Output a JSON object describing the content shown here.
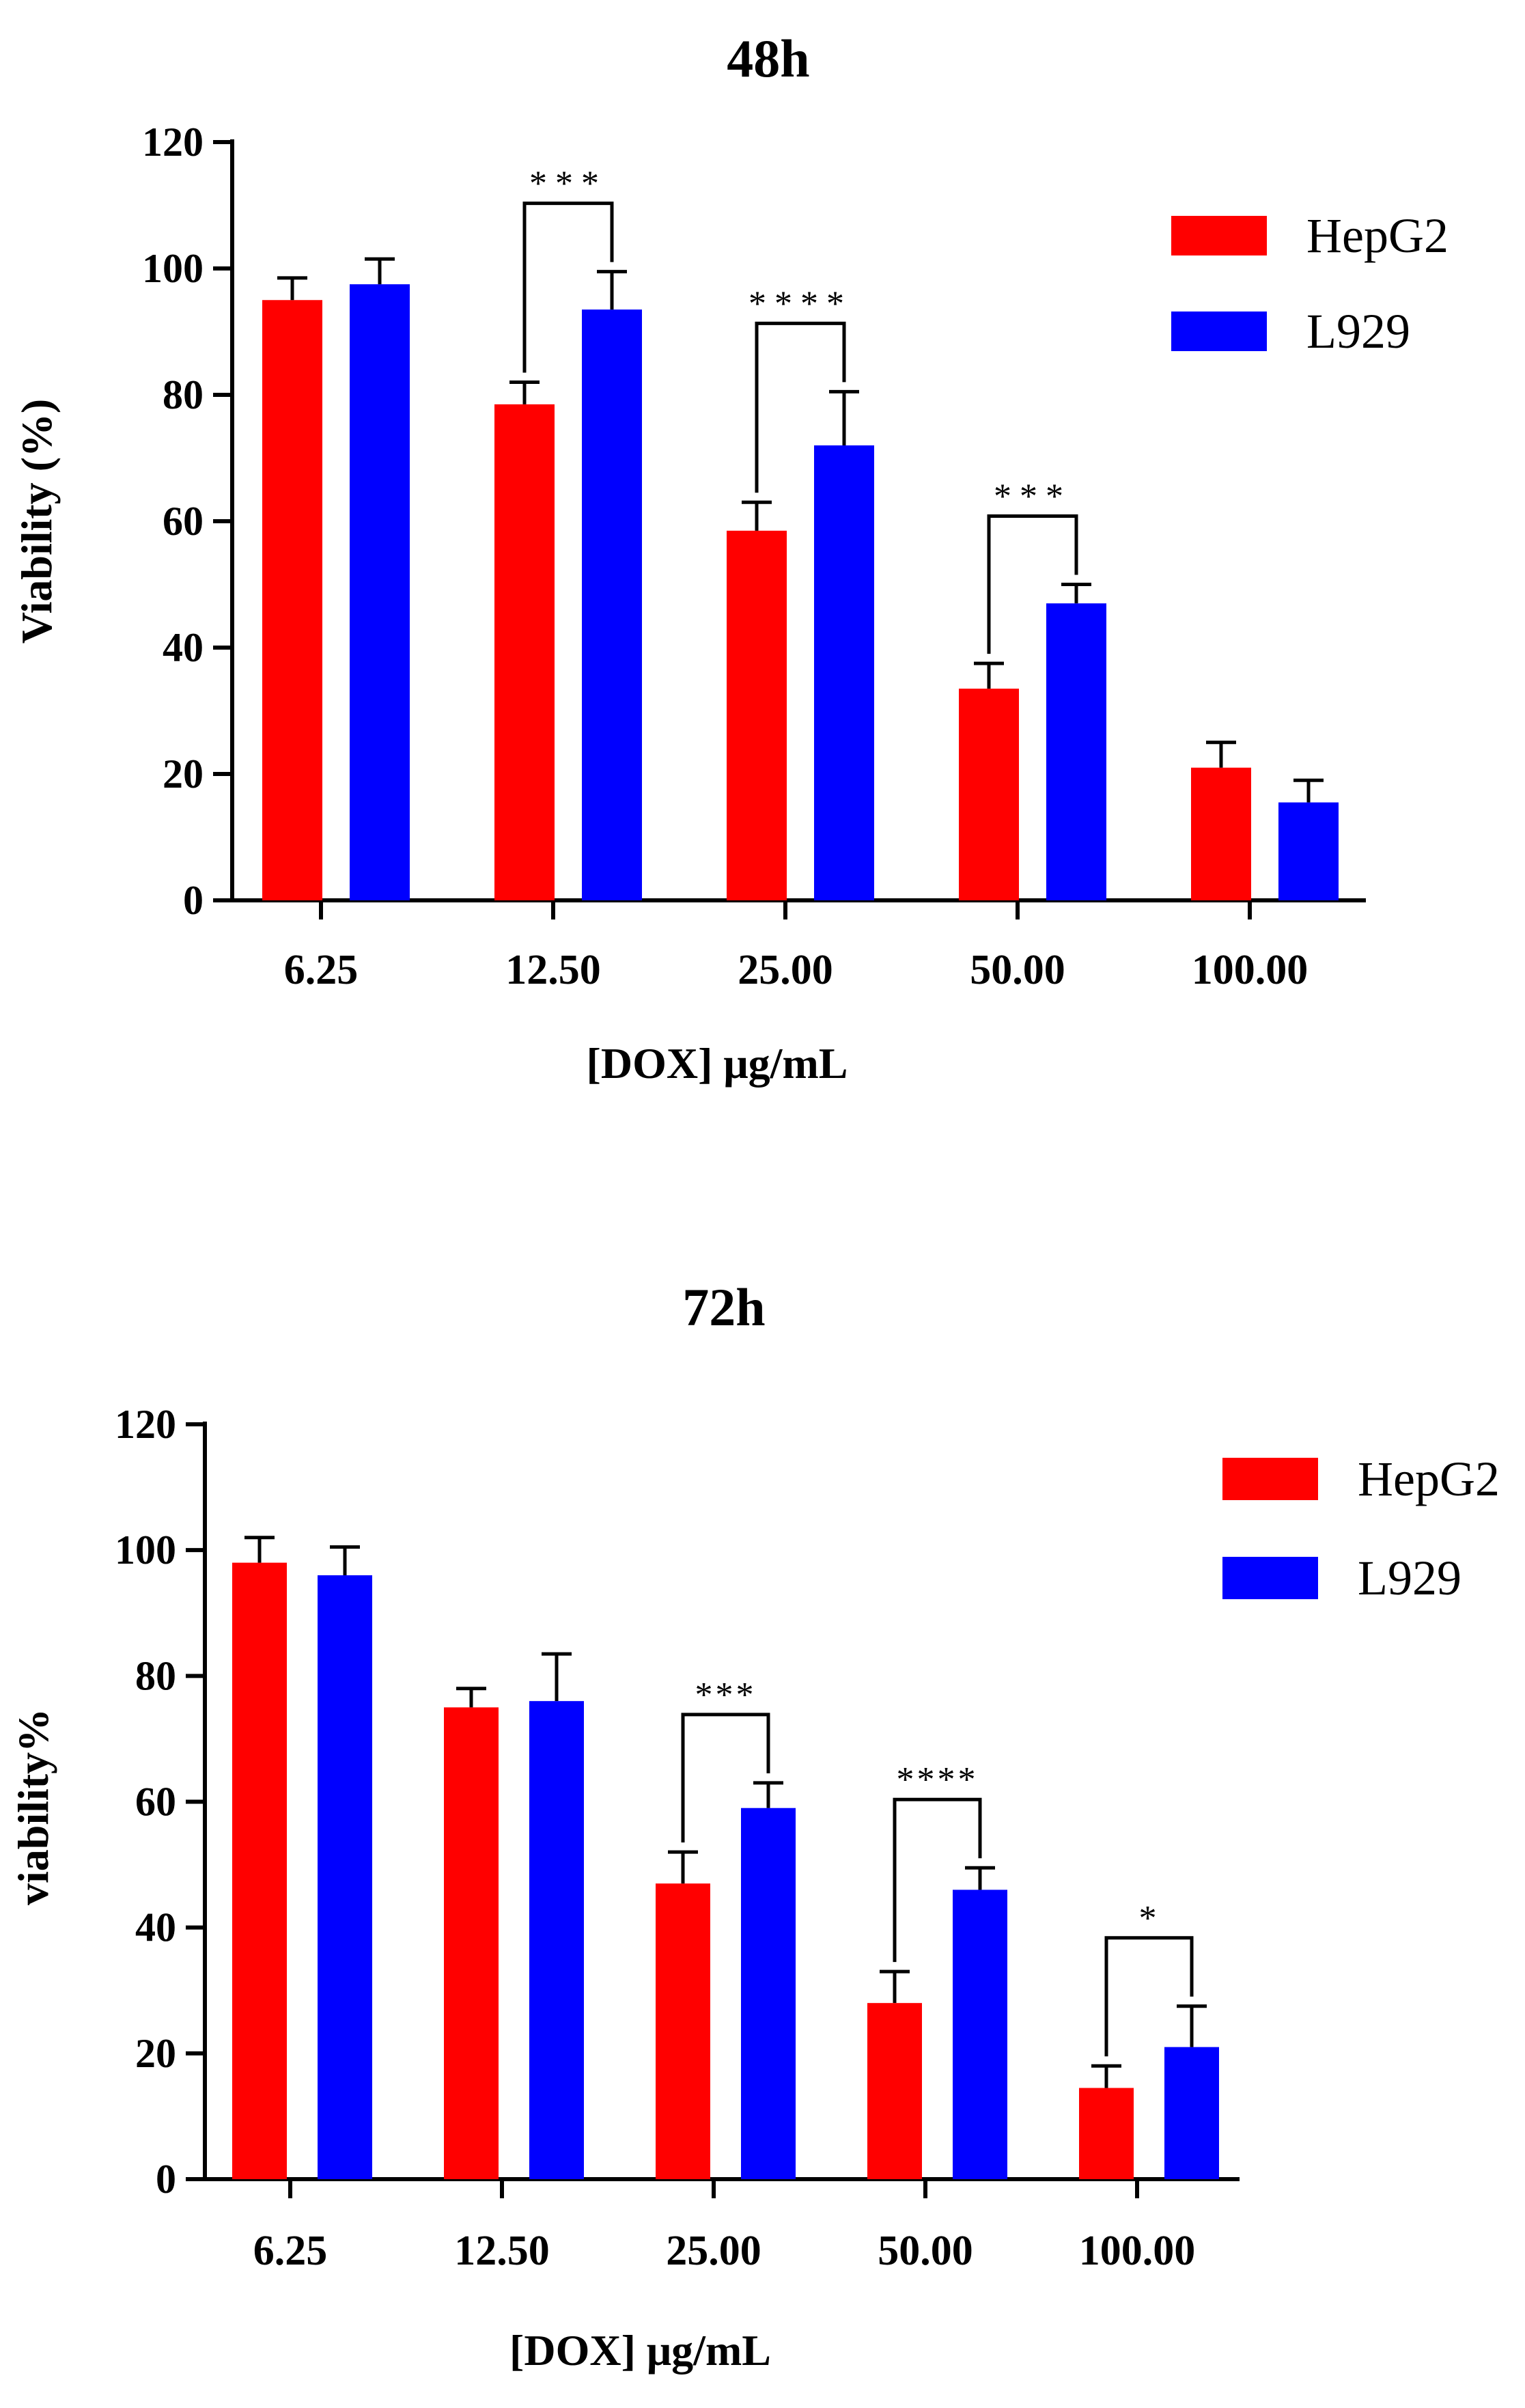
{
  "chart_data": [
    {
      "type": "bar",
      "title": "48h",
      "xlabel": "[DOX] μg/mL",
      "ylabel": "Viability (%)",
      "ylim": [
        0,
        120
      ],
      "yticks": [
        "0",
        "20",
        "40",
        "60",
        "80",
        "100",
        "120"
      ],
      "categories": [
        "6.25",
        "12.50",
        "25.00",
        "50.00",
        "100.00"
      ],
      "series": [
        {
          "name": "HepG2",
          "color": "#ff0000",
          "values": [
            95,
            78.5,
            58.5,
            33.5,
            21
          ],
          "errors": [
            3.5,
            3.5,
            4.5,
            4,
            4
          ]
        },
        {
          "name": "L929",
          "color": "#0000ff",
          "values": [
            97.5,
            93.5,
            72,
            47,
            15.5
          ],
          "errors": [
            4,
            6,
            8.5,
            3,
            3.5
          ]
        }
      ],
      "significance": [
        {
          "category": 1,
          "label": "***"
        },
        {
          "category": 2,
          "label": "****"
        },
        {
          "category": 3,
          "label": "***"
        }
      ],
      "legend": [
        "HepG2",
        "L929"
      ],
      "legend_position": "top-right"
    },
    {
      "type": "bar",
      "title": "72h",
      "xlabel": "[DOX] μg/mL",
      "ylabel": "viability%",
      "ylim": [
        0,
        120
      ],
      "yticks": [
        "0",
        "20",
        "40",
        "60",
        "80",
        "100",
        "120"
      ],
      "categories": [
        "6.25",
        "12.50",
        "25.00",
        "50.00",
        "100.00"
      ],
      "series": [
        {
          "name": "HepG2",
          "color": "#ff0000",
          "values": [
            98,
            75,
            47,
            28,
            14.5
          ],
          "errors": [
            4,
            3,
            5,
            5,
            3.5
          ]
        },
        {
          "name": "L929",
          "color": "#0000ff",
          "values": [
            96,
            76,
            59,
            46,
            21
          ],
          "errors": [
            4.5,
            7.5,
            4,
            3.5,
            6.5
          ]
        }
      ],
      "significance": [
        {
          "category": 2,
          "label": "***"
        },
        {
          "category": 3,
          "label": "****"
        },
        {
          "category": 4,
          "label": "*"
        }
      ],
      "legend": [
        "HepG2",
        "L929"
      ],
      "legend_position": "top-right"
    }
  ]
}
